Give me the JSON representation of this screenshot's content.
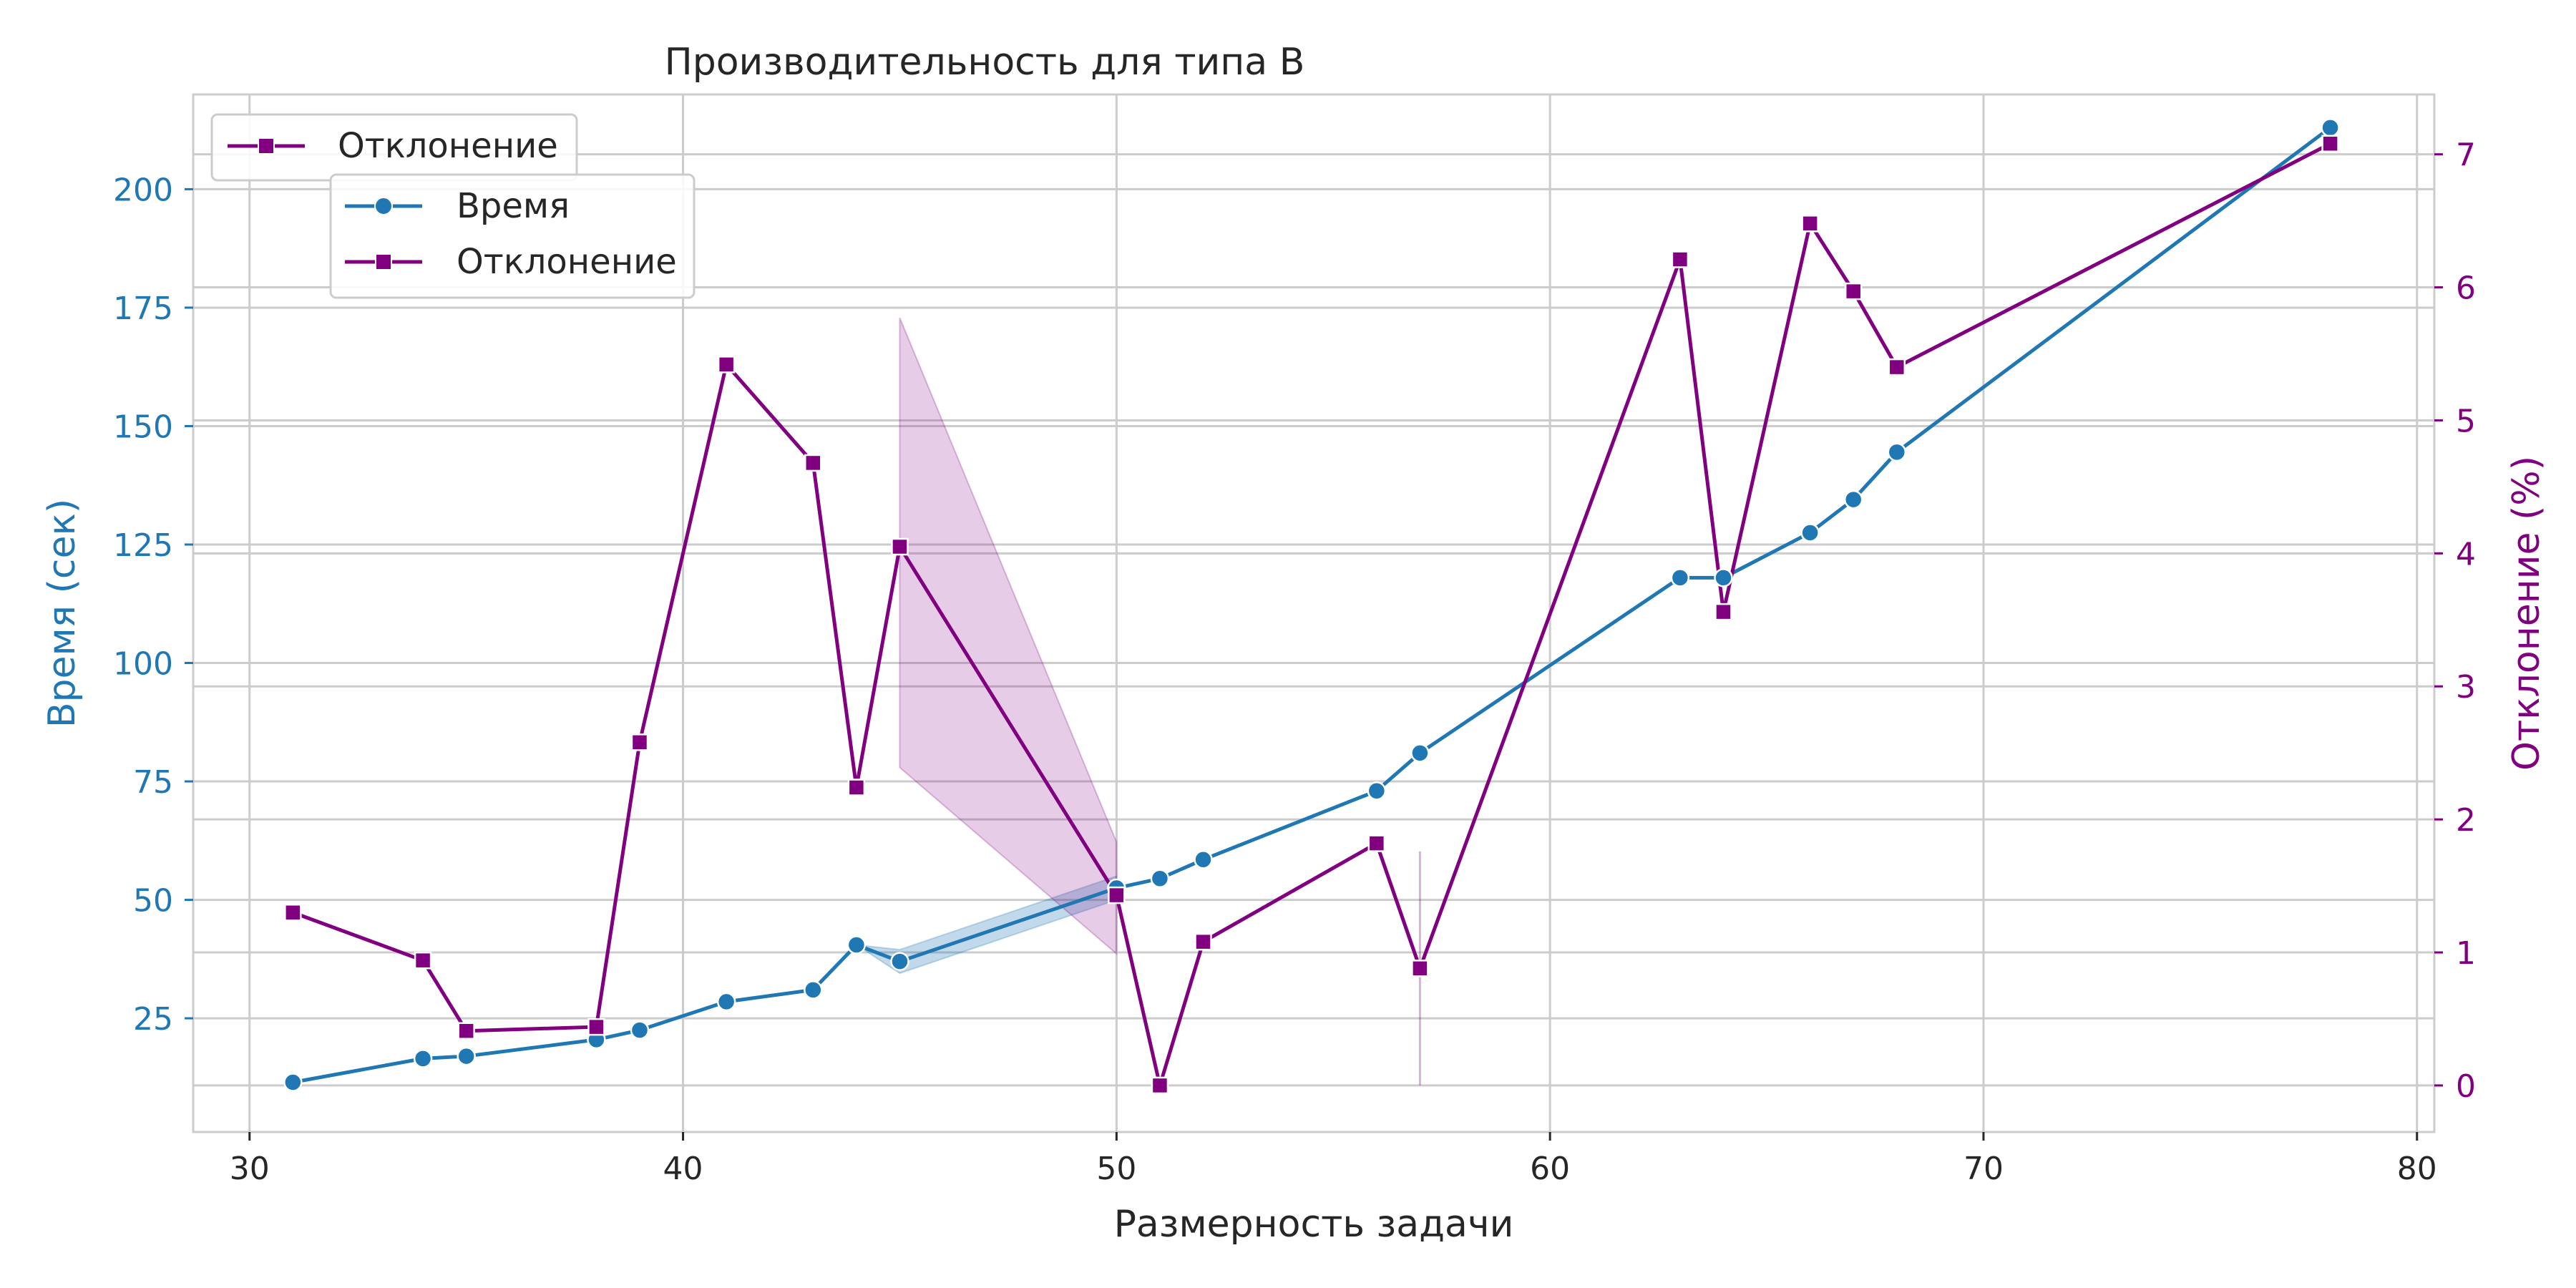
{
  "chart_data": {
    "type": "line",
    "title": "Производительность для типа B",
    "xlabel": "Размерность задачи",
    "ylabel_left": "Время (сек)",
    "ylabel_right": "Отклонение (%)",
    "xlim": [
      28.7,
      80.4
    ],
    "ylim_left": [
      1,
      220
    ],
    "ylim_right": [
      -0.35,
      7.45
    ],
    "x_ticks": [
      30,
      40,
      50,
      60,
      70,
      80
    ],
    "y_left_ticks": [
      25,
      50,
      75,
      100,
      125,
      150,
      175,
      200
    ],
    "y_right_ticks": [
      0,
      1,
      2,
      3,
      4,
      5,
      6,
      7
    ],
    "grid": true,
    "series": [
      {
        "name": "Время",
        "axis": "left",
        "color": "#1f77b4",
        "marker": "circle",
        "points": [
          [
            31,
            11.5
          ],
          [
            34,
            16.5
          ],
          [
            35,
            17
          ],
          [
            38,
            20.5
          ],
          [
            39,
            22.5
          ],
          [
            41,
            28.5
          ],
          [
            43,
            31
          ],
          [
            44,
            40.5
          ],
          [
            45,
            37
          ],
          [
            50,
            52.5
          ],
          [
            51,
            54.5
          ],
          [
            52,
            58.5
          ],
          [
            56,
            73
          ],
          [
            57,
            81
          ],
          [
            63,
            118
          ],
          [
            64,
            118
          ],
          [
            66,
            127.5
          ],
          [
            67,
            134.5
          ],
          [
            68,
            144.5
          ],
          [
            78,
            213
          ]
        ],
        "band": [
          [
            44,
            40.5,
            40.5
          ],
          [
            45,
            34.5,
            39.5
          ],
          [
            50,
            50,
            55
          ]
        ]
      },
      {
        "name": "Отклонение",
        "axis": "right",
        "color": "#800080",
        "marker": "square",
        "points": [
          [
            31,
            1.3
          ],
          [
            34,
            0.94
          ],
          [
            35,
            0.41
          ],
          [
            38,
            0.44
          ],
          [
            39,
            2.58
          ],
          [
            41,
            5.42
          ],
          [
            43,
            4.68
          ],
          [
            44,
            2.24
          ],
          [
            45,
            4.05
          ],
          [
            50,
            1.43
          ],
          [
            51,
            0.0
          ],
          [
            52,
            1.08
          ],
          [
            56,
            1.82
          ],
          [
            57,
            0.88
          ],
          [
            63,
            6.21
          ],
          [
            64,
            3.56
          ],
          [
            66,
            6.48
          ],
          [
            67,
            5.97
          ],
          [
            68,
            5.4
          ],
          [
            78,
            7.08
          ]
        ],
        "band": [
          [
            45,
            2.39,
            5.77
          ],
          [
            50,
            0.99,
            1.83
          ]
        ],
        "vline": [
          57,
          0.0,
          1.76
        ]
      }
    ],
    "legends": [
      {
        "placement": "upper-left",
        "entries": [
          "Отклонение"
        ]
      },
      {
        "placement": "upper-left-offset",
        "entries": [
          "Время",
          "Отклонение"
        ]
      }
    ]
  }
}
